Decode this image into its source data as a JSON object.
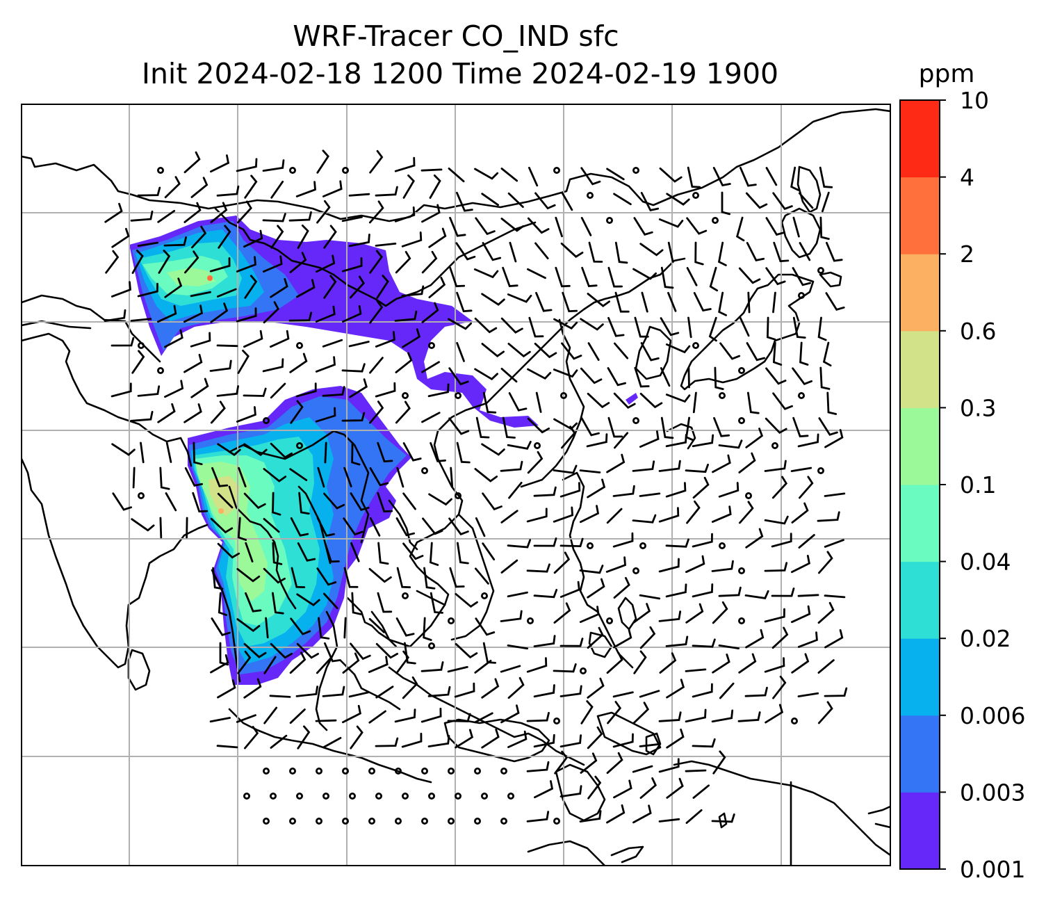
{
  "title": {
    "line1": "WRF-Tracer CO_IND sfc",
    "line2": "Init 2024-02-18 1200 Time 2024-02-19 1900"
  },
  "colorbar": {
    "unit": "ppm",
    "levels": [
      "0.001",
      "0.003",
      "0.006",
      "0.02",
      "0.04",
      "0.1",
      "0.3",
      "0.6",
      "2",
      "4",
      "10"
    ],
    "colors": [
      "#6528f9",
      "#3375f4",
      "#06b1ee",
      "#2edfd5",
      "#6afbc0",
      "#9cf99a",
      "#d2e289",
      "#fcb062",
      "#ff703c",
      "#ff2a16"
    ]
  },
  "map": {
    "coastline_color": "#000000",
    "gridline_color": "#b0b0b0",
    "wind_barb_color": "#000000"
  }
}
